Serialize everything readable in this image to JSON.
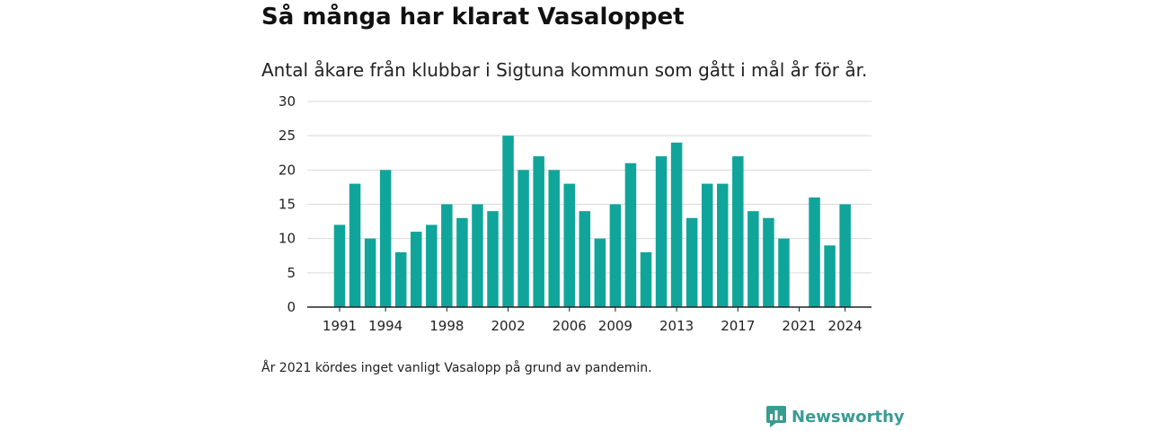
{
  "header": {
    "title": "Så många har klarat Vasaloppet",
    "subtitle": "Antal åkare från klubbar i Sigtuna kommun som gått i mål år för år."
  },
  "footnote": "År 2021 kördes inget vanligt Vasalopp på grund av pandemin.",
  "brand": {
    "name": "Newsworthy",
    "icon": "newsworthy-logo-icon",
    "color": "#3a9b93"
  },
  "chart_data": {
    "type": "bar",
    "title": "Så många har klarat Vasaloppet",
    "subtitle": "Antal åkare från klubbar i Sigtuna kommun som gått i mål år för år.",
    "xlabel": "",
    "ylabel": "",
    "categories": [
      "1991",
      "1992",
      "1993",
      "1994",
      "1995",
      "1996",
      "1997",
      "1998",
      "1999",
      "2000",
      "2001",
      "2002",
      "2003",
      "2004",
      "2005",
      "2006",
      "2007",
      "2008",
      "2009",
      "2010",
      "2011",
      "2012",
      "2013",
      "2014",
      "2015",
      "2016",
      "2017",
      "2018",
      "2019",
      "2020",
      "2021",
      "2022",
      "2023",
      "2024"
    ],
    "values": [
      12,
      18,
      10,
      20,
      8,
      11,
      12,
      15,
      13,
      15,
      14,
      25,
      20,
      22,
      20,
      18,
      14,
      10,
      15,
      21,
      8,
      22,
      24,
      13,
      18,
      18,
      22,
      14,
      13,
      10,
      0,
      16,
      9,
      15
    ],
    "x_tick_labels": [
      "1991",
      "1994",
      "1998",
      "2002",
      "2006",
      "2009",
      "2013",
      "2017",
      "2021",
      "2024"
    ],
    "y_ticks": [
      0,
      5,
      10,
      15,
      20,
      25,
      30
    ],
    "ylim": [
      0,
      30
    ],
    "grid": true,
    "bar_color": "#10a59a"
  }
}
